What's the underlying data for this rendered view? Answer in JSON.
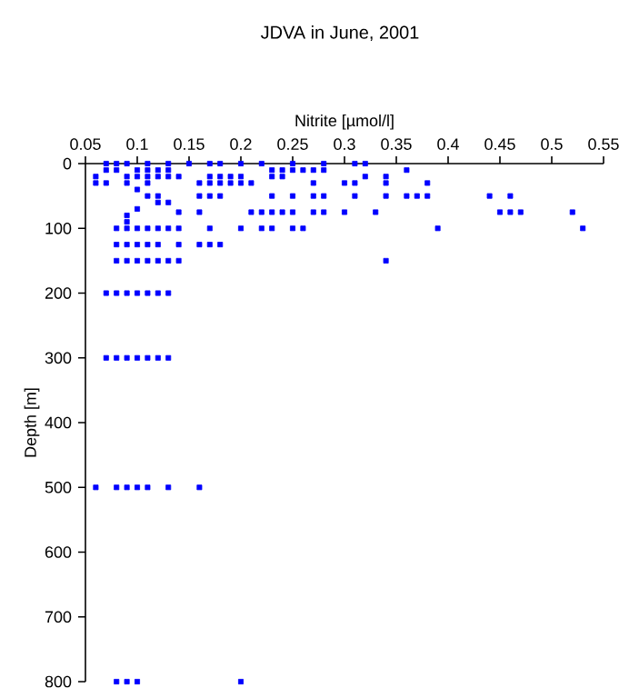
{
  "chart_data": {
    "type": "scatter",
    "title": "JDVA in June, 2001",
    "xlabel": "Nitrite [µmol/l]",
    "ylabel": "Depth [m]",
    "xlim": [
      0.05,
      0.55
    ],
    "xticks": [
      0.05,
      0.1,
      0.15,
      0.2,
      0.25,
      0.3,
      0.35,
      0.4,
      0.45,
      0.5,
      0.55
    ],
    "ylim": [
      800,
      0
    ],
    "yticks": [
      0,
      100,
      200,
      300,
      400,
      500,
      600,
      700,
      800
    ],
    "marker": "square",
    "series": [
      {
        "color": "#0000ff",
        "x": [
          0.07,
          0.08,
          0.09,
          0.11,
          0.13,
          0.15,
          0.17,
          0.18,
          0.2,
          0.22,
          0.25,
          0.28,
          0.31,
          0.32,
          0.07,
          0.08,
          0.1,
          0.11,
          0.12,
          0.13,
          0.23,
          0.24,
          0.25,
          0.26,
          0.27,
          0.28,
          0.36,
          0.06,
          0.09,
          0.1,
          0.11,
          0.12,
          0.13,
          0.14,
          0.17,
          0.18,
          0.19,
          0.2,
          0.23,
          0.24,
          0.32,
          0.34,
          0.06,
          0.07,
          0.09,
          0.11,
          0.16,
          0.17,
          0.18,
          0.19,
          0.2,
          0.21,
          0.27,
          0.3,
          0.31,
          0.34,
          0.38,
          0.1,
          0.11,
          0.12,
          0.16,
          0.17,
          0.18,
          0.23,
          0.25,
          0.27,
          0.28,
          0.31,
          0.34,
          0.36,
          0.37,
          0.38,
          0.44,
          0.46,
          0.12,
          0.13,
          0.1,
          0.14,
          0.16,
          0.21,
          0.22,
          0.23,
          0.24,
          0.25,
          0.27,
          0.28,
          0.3,
          0.33,
          0.45,
          0.46,
          0.47,
          0.52,
          0.09,
          0.09,
          0.08,
          0.09,
          0.1,
          0.11,
          0.12,
          0.13,
          0.14,
          0.17,
          0.2,
          0.22,
          0.23,
          0.25,
          0.26,
          0.39,
          0.53,
          0.08,
          0.09,
          0.1,
          0.11,
          0.12,
          0.14,
          0.16,
          0.17,
          0.18,
          0.08,
          0.09,
          0.1,
          0.11,
          0.12,
          0.13,
          0.14,
          0.34,
          0.07,
          0.08,
          0.09,
          0.1,
          0.11,
          0.12,
          0.13,
          0.07,
          0.08,
          0.09,
          0.1,
          0.11,
          0.12,
          0.13,
          0.06,
          0.08,
          0.09,
          0.1,
          0.11,
          0.13,
          0.16,
          0.08,
          0.09,
          0.1,
          0.2
        ],
        "values": [
          0,
          0,
          0,
          0,
          0,
          0,
          0,
          0,
          0,
          0,
          0,
          0,
          0,
          0,
          10,
          10,
          10,
          10,
          10,
          10,
          10,
          10,
          10,
          10,
          10,
          10,
          10,
          20,
          20,
          20,
          20,
          20,
          20,
          20,
          20,
          20,
          20,
          20,
          20,
          20,
          20,
          20,
          30,
          30,
          30,
          30,
          30,
          30,
          30,
          30,
          30,
          30,
          30,
          30,
          30,
          30,
          30,
          40,
          50,
          50,
          50,
          50,
          50,
          50,
          50,
          50,
          50,
          50,
          50,
          50,
          50,
          50,
          50,
          50,
          60,
          60,
          70,
          75,
          75,
          75,
          75,
          75,
          75,
          75,
          75,
          75,
          75,
          75,
          75,
          75,
          75,
          75,
          80,
          90,
          100,
          100,
          100,
          100,
          100,
          100,
          100,
          100,
          100,
          100,
          100,
          100,
          100,
          100,
          100,
          125,
          125,
          125,
          125,
          125,
          125,
          125,
          125,
          125,
          150,
          150,
          150,
          150,
          150,
          150,
          150,
          150,
          200,
          200,
          200,
          200,
          200,
          200,
          200,
          300,
          300,
          300,
          300,
          300,
          300,
          300,
          500,
          500,
          500,
          500,
          500,
          500,
          500,
          800,
          800,
          800,
          800
        ]
      }
    ]
  }
}
